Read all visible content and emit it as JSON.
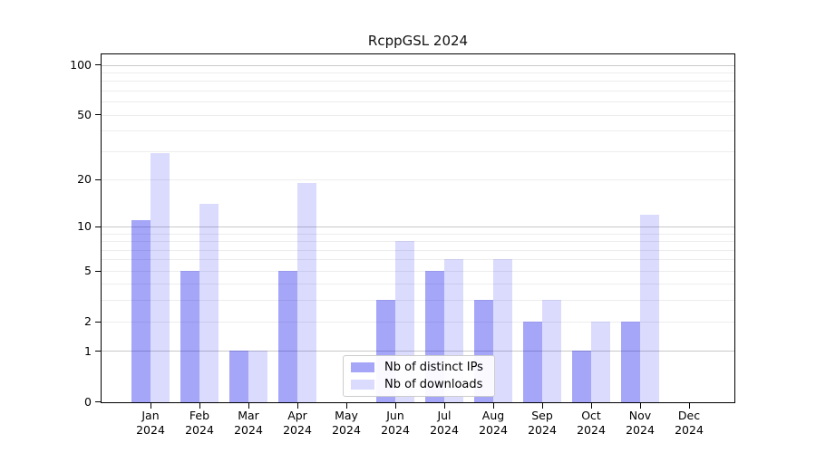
{
  "chart_data": {
    "type": "bar",
    "title": "RcppGSL 2024",
    "categories": [
      "Jan",
      "Feb",
      "Mar",
      "Apr",
      "May",
      "Jun",
      "Jul",
      "Aug",
      "Sep",
      "Oct",
      "Nov",
      "Dec"
    ],
    "category_year": "2024",
    "series": [
      {
        "name": "Nb of distinct IPs",
        "color": "rgba(0,0,238,0.35)",
        "values": [
          11,
          5,
          1,
          5,
          0,
          3,
          5,
          3,
          2,
          1,
          2,
          0
        ]
      },
      {
        "name": "Nb of downloads",
        "color": "rgba(0,0,238,0.14)",
        "values": [
          29,
          14,
          1,
          19,
          0,
          8,
          6,
          6,
          3,
          2,
          12,
          0
        ]
      }
    ],
    "xlabel": "",
    "ylabel": "",
    "scale": "log1p",
    "ylim": [
      0,
      100
    ],
    "yticks": [
      0,
      1,
      2,
      5,
      10,
      20,
      50,
      100
    ],
    "grid_major": [
      1,
      10,
      100
    ],
    "grid_minor": [
      2,
      3,
      4,
      5,
      6,
      7,
      8,
      9,
      20,
      30,
      40,
      50,
      60,
      70,
      80,
      90
    ],
    "grid": "on",
    "legend_position": "lower center",
    "colors": {
      "grid_major": "#c9c9c9",
      "grid_minor": "#ededed",
      "axis": "#000000",
      "background": "#ffffff"
    }
  }
}
